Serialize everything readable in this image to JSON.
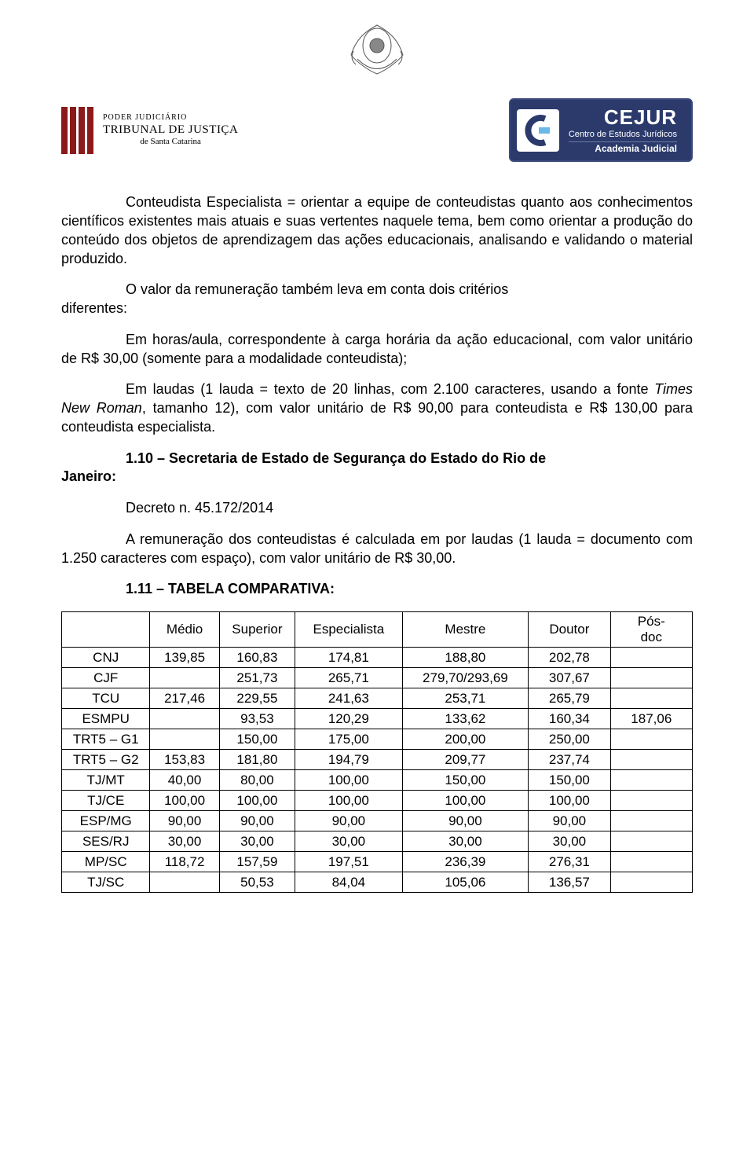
{
  "logos": {
    "tj": {
      "line1": "PODER JUDICIÁRIO",
      "line2": "TRIBUNAL DE JUSTIÇA",
      "line3": "de Santa Catarina"
    },
    "cejur": {
      "name": "CEJUR",
      "sub1": "Centro de Estudos Jurídicos",
      "sub2": "Academia Judicial"
    }
  },
  "body": {
    "p1": "Conteudista Especialista = orientar a equipe de conteudistas quanto aos conhecimentos científicos existentes mais atuais e suas vertentes naquele tema, bem como orientar a produção do conteúdo dos objetos de aprendizagem das ações educacionais, analisando e validando o material produzido.",
    "p2_pre": "diferentes:",
    "p2_main": "O valor da remuneração também leva em conta dois critérios",
    "p3": "Em horas/aula, correspondente à carga horária da ação educacional, com valor unitário de R$ 30,00 (somente para a modalidade conteudista);",
    "p4_a": "Em laudas (1 lauda = texto de 20 linhas, com 2.100 caracteres, usando a fonte ",
    "p4_ital": "Times New Roman",
    "p4_b": ", tamanho 12), com valor unitário de R$ 90,00 para conteudista e R$ 130,00 para conteudista especialista.",
    "p5_pre": "Janeiro:",
    "p5_heading": "1.10 – Secretaria de Estado de Segurança do Estado do Rio de",
    "p6": "Decreto n. 45.172/2014",
    "p7": "A remuneração dos conteudistas é calculada em por laudas (1 lauda = documento com 1.250 caracteres com espaço), com valor unitário de R$ 30,00.",
    "p8": "1.11 – TABELA COMPARATIVA:"
  },
  "table": {
    "columns": [
      "",
      "Médio",
      "Superior",
      "Especialista",
      "Mestre",
      "Doutor",
      "Pós-doc"
    ],
    "rows": [
      [
        "CNJ",
        "139,85",
        "160,83",
        "174,81",
        "188,80",
        "202,78",
        ""
      ],
      [
        "CJF",
        "",
        "251,73",
        "265,71",
        "279,70/293,69",
        "307,67",
        ""
      ],
      [
        "TCU",
        "217,46",
        "229,55",
        "241,63",
        "253,71",
        "265,79",
        ""
      ],
      [
        "ESMPU",
        "",
        "93,53",
        "120,29",
        "133,62",
        "160,34",
        "187,06"
      ],
      [
        "TRT5 – G1",
        "",
        "150,00",
        "175,00",
        "200,00",
        "250,00",
        ""
      ],
      [
        "TRT5 – G2",
        "153,83",
        "181,80",
        "194,79",
        "209,77",
        "237,74",
        ""
      ],
      [
        "TJ/MT",
        "40,00",
        "80,00",
        "100,00",
        "150,00",
        "150,00",
        ""
      ],
      [
        "TJ/CE",
        "100,00",
        "100,00",
        "100,00",
        "100,00",
        "100,00",
        ""
      ],
      [
        "ESP/MG",
        "90,00",
        "90,00",
        "90,00",
        "90,00",
        "90,00",
        ""
      ],
      [
        "SES/RJ",
        "30,00",
        "30,00",
        "30,00",
        "30,00",
        "30,00",
        ""
      ],
      [
        "MP/SC",
        "118,72",
        "157,59",
        "197,51",
        "236,39",
        "276,31",
        ""
      ],
      [
        "TJ/SC",
        "",
        "50,53",
        "84,04",
        "105,06",
        "136,57",
        ""
      ]
    ],
    "col_widths": [
      "14%",
      "11%",
      "12%",
      "17%",
      "20%",
      "13%",
      "13%"
    ]
  },
  "colors": {
    "text": "#000000",
    "bg": "#ffffff",
    "bar": "#8b1a1a",
    "cejur_bg": "#2b3a6b",
    "cejur_accent": "#6bb7e6"
  }
}
